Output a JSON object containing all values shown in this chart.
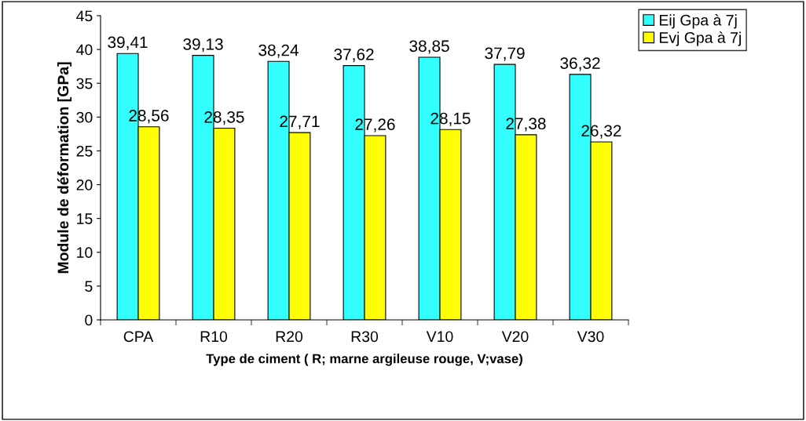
{
  "chart_data": {
    "type": "bar",
    "xlabel": "Type de ciment ( R; marne argileuse rouge, V;vase)",
    "ylabel": "Module de déformation [GPa]",
    "categories": [
      "CPA",
      "R10",
      "R20",
      "R30",
      "V10",
      "V20",
      "V30"
    ],
    "series": [
      {
        "name": "Eij Gpa à 7j",
        "color": "#33ffff",
        "values": [
          39.41,
          39.13,
          38.24,
          37.62,
          38.85,
          37.79,
          36.32
        ],
        "value_labels": [
          "39,41",
          "39,13",
          "38,24",
          "37,62",
          "38,85",
          "37,79",
          "36,32"
        ]
      },
      {
        "name": "Evj Gpa à 7j",
        "color": "#ffff00",
        "values": [
          28.56,
          28.35,
          27.71,
          27.26,
          28.15,
          27.38,
          26.32
        ],
        "value_labels": [
          "28,56",
          "28,35",
          "27,71",
          "27,26",
          "28,15",
          "27,38",
          "26,32"
        ]
      }
    ],
    "ylim": [
      0,
      45
    ],
    "yticks": [
      0,
      5,
      10,
      15,
      20,
      25,
      30,
      35,
      40,
      45
    ],
    "grid": false,
    "legend": "top right"
  }
}
